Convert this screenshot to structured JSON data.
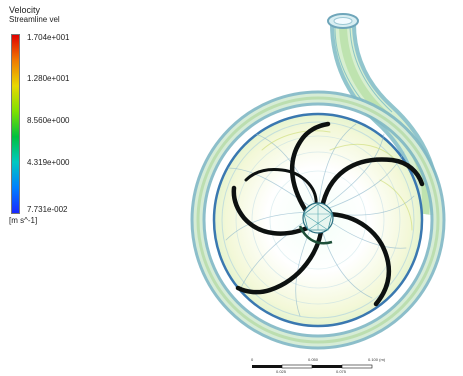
{
  "legend": {
    "title": "Velocity",
    "subtitle": "Streamline vel",
    "ticks": [
      "1.704e+001",
      "1.280e+001",
      "8.560e+000",
      "4.319e+000",
      "7.731e-002"
    ],
    "units": "[m s^-1]",
    "colors": [
      "#e10000",
      "#f07a00",
      "#e8d800",
      "#7fe000",
      "#00c040",
      "#00c8c0",
      "#0080ff",
      "#1a28ff"
    ]
  },
  "scale_bar": {
    "labels_top": [
      "0",
      "0.050",
      "0.100 (m)"
    ],
    "labels_bottom": [
      "0.025",
      "0.075"
    ]
  }
}
